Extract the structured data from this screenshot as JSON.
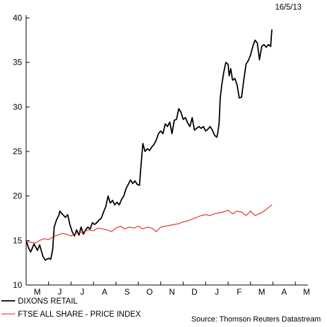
{
  "chart_data": {
    "type": "line",
    "date": "16/5/13",
    "source": "Source: Thomson Reuters Datastream",
    "y_ticks": [
      10,
      15,
      20,
      25,
      30,
      35,
      40
    ],
    "ylim": [
      10,
      40
    ],
    "x_ticks": [
      "M",
      "J",
      "J",
      "A",
      "S",
      "O",
      "N",
      "D",
      "J",
      "F",
      "M",
      "A",
      "M"
    ],
    "x_range": [
      0,
      12.55
    ],
    "grid": false,
    "legend_placement": "bottom-left",
    "series": [
      {
        "name": "DIXONS RETAIL",
        "color": "#000000",
        "points": [
          [
            0.0,
            15.0
          ],
          [
            0.1,
            14.2
          ],
          [
            0.2,
            13.7
          ],
          [
            0.35,
            14.6
          ],
          [
            0.5,
            13.9
          ],
          [
            0.6,
            14.5
          ],
          [
            0.75,
            13.2
          ],
          [
            0.85,
            12.8
          ],
          [
            1.0,
            13.0
          ],
          [
            1.1,
            12.9
          ],
          [
            1.18,
            14.0
          ],
          [
            1.25,
            16.5
          ],
          [
            1.35,
            17.3
          ],
          [
            1.45,
            17.8
          ],
          [
            1.5,
            18.3
          ],
          [
            1.6,
            18.0
          ],
          [
            1.75,
            17.6
          ],
          [
            1.85,
            17.9
          ],
          [
            1.95,
            16.8
          ],
          [
            2.05,
            16.0
          ],
          [
            2.15,
            15.5
          ],
          [
            2.25,
            16.2
          ],
          [
            2.35,
            15.6
          ],
          [
            2.45,
            16.5
          ],
          [
            2.55,
            15.7
          ],
          [
            2.65,
            16.2
          ],
          [
            2.75,
            16.5
          ],
          [
            2.85,
            16.3
          ],
          [
            2.95,
            17.0
          ],
          [
            3.05,
            16.8
          ],
          [
            3.15,
            17.0
          ],
          [
            3.25,
            17.3
          ],
          [
            3.35,
            17.5
          ],
          [
            3.45,
            18.2
          ],
          [
            3.55,
            18.8
          ],
          [
            3.65,
            20.0
          ],
          [
            3.75,
            19.2
          ],
          [
            3.85,
            19.5
          ],
          [
            3.95,
            19.0
          ],
          [
            4.05,
            19.3
          ],
          [
            4.15,
            19.0
          ],
          [
            4.25,
            19.6
          ],
          [
            4.35,
            20.0
          ],
          [
            4.45,
            20.8
          ],
          [
            4.55,
            21.3
          ],
          [
            4.65,
            21.8
          ],
          [
            4.75,
            21.4
          ],
          [
            4.85,
            21.7
          ],
          [
            4.95,
            21.3
          ],
          [
            5.05,
            21.2
          ],
          [
            5.12,
            23.5
          ],
          [
            5.2,
            25.9
          ],
          [
            5.3,
            25.0
          ],
          [
            5.4,
            25.3
          ],
          [
            5.5,
            25.1
          ],
          [
            5.6,
            25.5
          ],
          [
            5.7,
            25.8
          ],
          [
            5.8,
            26.3
          ],
          [
            5.9,
            27.0
          ],
          [
            6.0,
            27.3
          ],
          [
            6.1,
            27.0
          ],
          [
            6.2,
            28.1
          ],
          [
            6.3,
            27.8
          ],
          [
            6.4,
            28.3
          ],
          [
            6.5,
            27.0
          ],
          [
            6.6,
            28.5
          ],
          [
            6.7,
            28.6
          ],
          [
            6.8,
            29.8
          ],
          [
            6.9,
            29.4
          ],
          [
            7.0,
            28.6
          ],
          [
            7.1,
            28.8
          ],
          [
            7.2,
            28.2
          ],
          [
            7.3,
            27.8
          ],
          [
            7.4,
            28.8
          ],
          [
            7.5,
            27.4
          ],
          [
            7.6,
            27.6
          ],
          [
            7.7,
            27.8
          ],
          [
            7.8,
            27.6
          ],
          [
            7.9,
            27.8
          ],
          [
            8.0,
            27.3
          ],
          [
            8.1,
            27.5
          ],
          [
            8.2,
            27.8
          ],
          [
            8.3,
            27.4
          ],
          [
            8.4,
            26.8
          ],
          [
            8.5,
            26.6
          ],
          [
            8.55,
            27.2
          ],
          [
            8.6,
            28.2
          ],
          [
            8.65,
            31.0
          ],
          [
            8.72,
            32.5
          ],
          [
            8.8,
            33.8
          ],
          [
            8.9,
            35.0
          ],
          [
            9.0,
            34.8
          ],
          [
            9.05,
            33.5
          ],
          [
            9.12,
            34.3
          ],
          [
            9.2,
            33.0
          ],
          [
            9.3,
            33.2
          ],
          [
            9.4,
            32.5
          ],
          [
            9.5,
            31.0
          ],
          [
            9.6,
            31.1
          ],
          [
            9.7,
            33.0
          ],
          [
            9.8,
            34.8
          ],
          [
            9.9,
            35.2
          ],
          [
            10.0,
            35.8
          ],
          [
            10.1,
            36.8
          ],
          [
            10.2,
            37.5
          ],
          [
            10.3,
            37.2
          ],
          [
            10.4,
            35.3
          ],
          [
            10.5,
            36.8
          ],
          [
            10.6,
            37.0
          ],
          [
            10.7,
            36.7
          ],
          [
            10.8,
            37.0
          ],
          [
            10.9,
            36.8
          ],
          [
            10.95,
            38.7
          ]
        ]
      },
      {
        "name": "FTSE ALL SHARE - PRICE INDEX",
        "color": "#d9231f",
        "points": [
          [
            0.0,
            14.9
          ],
          [
            0.2,
            14.8
          ],
          [
            0.4,
            14.7
          ],
          [
            0.6,
            15.0
          ],
          [
            0.8,
            15.2
          ],
          [
            1.0,
            15.1
          ],
          [
            1.2,
            15.4
          ],
          [
            1.4,
            15.6
          ],
          [
            1.6,
            15.8
          ],
          [
            1.8,
            15.7
          ],
          [
            2.0,
            15.5
          ],
          [
            2.2,
            15.8
          ],
          [
            2.4,
            15.9
          ],
          [
            2.6,
            16.0
          ],
          [
            2.8,
            16.2
          ],
          [
            3.0,
            16.1
          ],
          [
            3.2,
            16.4
          ],
          [
            3.4,
            16.3
          ],
          [
            3.6,
            16.2
          ],
          [
            3.8,
            16.0
          ],
          [
            4.0,
            16.4
          ],
          [
            4.2,
            16.6
          ],
          [
            4.4,
            16.3
          ],
          [
            4.6,
            16.5
          ],
          [
            4.8,
            16.4
          ],
          [
            5.0,
            16.6
          ],
          [
            5.2,
            16.3
          ],
          [
            5.4,
            16.5
          ],
          [
            5.6,
            16.4
          ],
          [
            5.8,
            16.0
          ],
          [
            6.0,
            16.5
          ],
          [
            6.2,
            16.6
          ],
          [
            6.4,
            16.7
          ],
          [
            6.6,
            16.8
          ],
          [
            6.8,
            16.9
          ],
          [
            7.0,
            17.1
          ],
          [
            7.2,
            17.2
          ],
          [
            7.4,
            17.4
          ],
          [
            7.6,
            17.6
          ],
          [
            7.8,
            17.8
          ],
          [
            8.0,
            17.9
          ],
          [
            8.2,
            17.8
          ],
          [
            8.4,
            18.0
          ],
          [
            8.6,
            18.1
          ],
          [
            8.8,
            18.2
          ],
          [
            9.0,
            18.4
          ],
          [
            9.2,
            18.0
          ],
          [
            9.4,
            18.3
          ],
          [
            9.6,
            18.2
          ],
          [
            9.8,
            17.8
          ],
          [
            10.0,
            18.3
          ],
          [
            10.2,
            17.8
          ],
          [
            10.4,
            18.0
          ],
          [
            10.6,
            18.3
          ],
          [
            10.8,
            18.7
          ],
          [
            10.95,
            19.0
          ]
        ]
      }
    ]
  }
}
